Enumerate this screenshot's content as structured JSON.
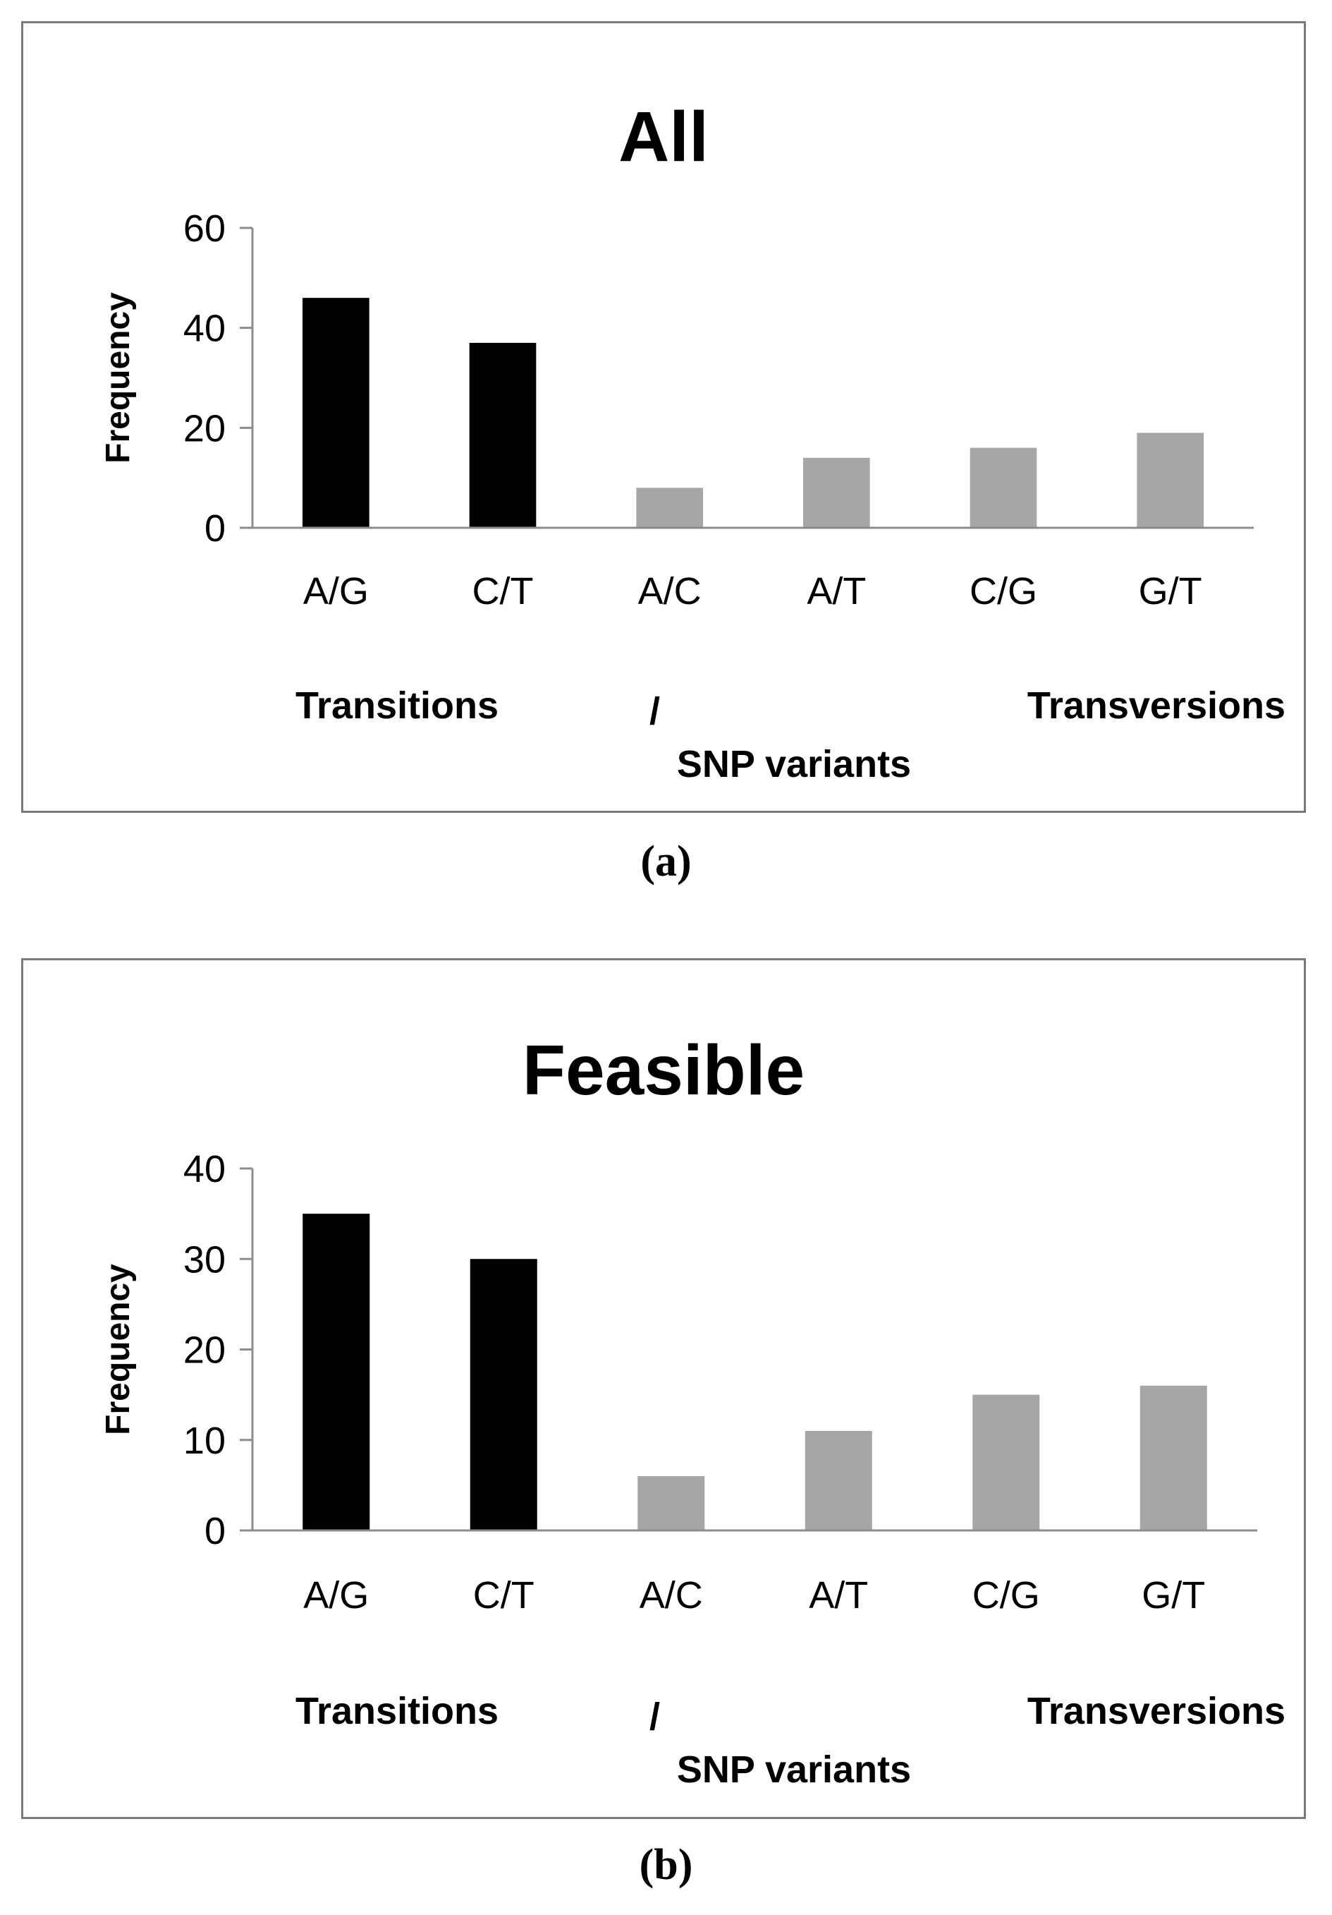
{
  "chart_data": [
    {
      "type": "bar",
      "title": "All",
      "caption": "(a)",
      "categories": [
        "A/G",
        "C/T",
        "A/C",
        "A/T",
        "C/G",
        "G/T"
      ],
      "values": [
        46,
        37,
        8,
        14,
        16,
        19
      ],
      "bar_colors": [
        "#000000",
        "#000000",
        "#a6a6a6",
        "#a6a6a6",
        "#a6a6a6",
        "#a6a6a6"
      ],
      "ylabel": "Frequency",
      "xlabel_left": "Transitions",
      "xlabel_separator": "/",
      "xlabel_right": "Transversions",
      "xlabel_bottom": "SNP variants",
      "ylim": [
        0,
        60
      ],
      "yticks": [
        0,
        20,
        40,
        60
      ]
    },
    {
      "type": "bar",
      "title": "Feasible",
      "caption": "(b)",
      "categories": [
        "A/G",
        "C/T",
        "A/C",
        "A/T",
        "C/G",
        "G/T"
      ],
      "values": [
        35,
        30,
        6,
        11,
        15,
        16
      ],
      "bar_colors": [
        "#000000",
        "#000000",
        "#a6a6a6",
        "#a6a6a6",
        "#a6a6a6",
        "#a6a6a6"
      ],
      "ylabel": "Frequency",
      "xlabel_left": "Transitions",
      "xlabel_separator": "/",
      "xlabel_right": "Transversions",
      "xlabel_bottom": "SNP variants",
      "ylim": [
        0,
        40
      ],
      "yticks": [
        0,
        10,
        20,
        30,
        40
      ]
    }
  ],
  "colors": {
    "axis": "#8c8c8c",
    "frame": "#7a7a7a",
    "transition": "#000000",
    "transversion": "#a6a6a6"
  }
}
